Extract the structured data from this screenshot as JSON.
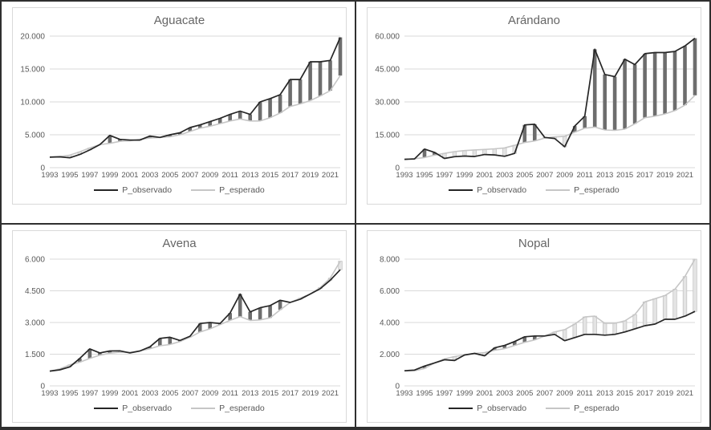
{
  "legend": {
    "observado": "P_observado",
    "esperado": "P_esperado"
  },
  "colors": {
    "frame_border": "#2f2f2f",
    "chart_box_border": "#d9d9d9",
    "gridline": "#d9d9d9",
    "axis_text": "#595959",
    "title_text": "#666666",
    "observado_line": "#262626",
    "esperado_line": "#c6c6c6",
    "bar_up": "#6d6d6d",
    "bar_down": "#e4e4e4",
    "bar_down_border": "#c2c2c2"
  },
  "years": [
    1993,
    1994,
    1995,
    1996,
    1997,
    1998,
    1999,
    2000,
    2001,
    2002,
    2003,
    2004,
    2005,
    2006,
    2007,
    2008,
    2009,
    2010,
    2011,
    2012,
    2013,
    2014,
    2015,
    2016,
    2017,
    2018,
    2019,
    2020,
    2021,
    2022
  ],
  "x_tick_labels": [
    "1993",
    "1995",
    "1997",
    "1999",
    "2001",
    "2003",
    "2005",
    "2007",
    "2009",
    "2011",
    "2013",
    "2015",
    "2017",
    "2019",
    "2021"
  ],
  "chart_data": [
    {
      "type": "line",
      "title": "Aguacate",
      "xlabel": "",
      "ylabel": "",
      "ylim": [
        0,
        20000
      ],
      "grid": true,
      "legend_position": "bottom",
      "y_ticks": [
        {
          "value": 0,
          "label": "0"
        },
        {
          "value": 5000,
          "label": "5.000"
        },
        {
          "value": 10000,
          "label": "10.000"
        },
        {
          "value": 15000,
          "label": "15.000"
        },
        {
          "value": 20000,
          "label": "20.000"
        }
      ],
      "series": [
        {
          "name": "P_observado",
          "values": [
            1600,
            1650,
            1500,
            2000,
            2700,
            3500,
            4900,
            4300,
            4200,
            4200,
            4800,
            4600,
            5000,
            5300,
            6100,
            6500,
            7000,
            7500,
            8100,
            8600,
            8100,
            10000,
            10500,
            11100,
            13400,
            13400,
            16100,
            16100,
            16300,
            19800
          ]
        },
        {
          "name": "P_esperado",
          "values": [
            1600,
            1700,
            1900,
            2400,
            3000,
            3500,
            3700,
            4000,
            4100,
            4300,
            4500,
            4600,
            4700,
            5000,
            5500,
            6000,
            6300,
            6700,
            7100,
            7400,
            7100,
            7100,
            7600,
            8300,
            9300,
            9700,
            10200,
            10900,
            11700,
            14000
          ]
        }
      ]
    },
    {
      "type": "line",
      "title": "Arándano",
      "xlabel": "",
      "ylabel": "",
      "ylim": [
        0,
        60000
      ],
      "grid": true,
      "legend_position": "bottom",
      "y_ticks": [
        {
          "value": 0,
          "label": "0"
        },
        {
          "value": 15000,
          "label": "15.000"
        },
        {
          "value": 30000,
          "label": "30.000"
        },
        {
          "value": 45000,
          "label": "45.000"
        },
        {
          "value": 60000,
          "label": "60.000"
        }
      ],
      "series": [
        {
          "name": "P_observado",
          "values": [
            3800,
            4000,
            8500,
            7000,
            4200,
            5000,
            5300,
            5100,
            6000,
            5800,
            5200,
            6500,
            19500,
            19800,
            13800,
            13300,
            9500,
            19000,
            23500,
            54000,
            42500,
            41500,
            49500,
            47000,
            52000,
            52500,
            52500,
            53000,
            55500,
            59000
          ]
        },
        {
          "name": "P_esperado",
          "values": [
            3800,
            4100,
            4600,
            5700,
            6500,
            7300,
            7800,
            8100,
            8300,
            8600,
            9000,
            10200,
            11500,
            12200,
            13500,
            14000,
            14300,
            16200,
            18000,
            18500,
            17200,
            17000,
            17600,
            20000,
            22800,
            23500,
            24500,
            26000,
            28500,
            33000
          ]
        }
      ]
    },
    {
      "type": "line",
      "title": "Avena",
      "xlabel": "",
      "ylabel": "",
      "ylim": [
        0,
        6000
      ],
      "grid": true,
      "legend_position": "bottom",
      "y_ticks": [
        {
          "value": 0,
          "label": "0"
        },
        {
          "value": 1500,
          "label": "1.500"
        },
        {
          "value": 3000,
          "label": "3.000"
        },
        {
          "value": 4500,
          "label": "4.500"
        },
        {
          "value": 6000,
          "label": "6.000"
        }
      ],
      "series": [
        {
          "name": "P_observado",
          "values": [
            700,
            760,
            900,
            1300,
            1750,
            1560,
            1650,
            1660,
            1560,
            1650,
            1850,
            2250,
            2300,
            2150,
            2350,
            2950,
            3000,
            2950,
            3450,
            4350,
            3500,
            3700,
            3800,
            4050,
            3950,
            4100,
            4350,
            4600,
            5000,
            5500
          ]
        },
        {
          "name": "P_esperado",
          "values": [
            700,
            800,
            1000,
            1120,
            1300,
            1450,
            1550,
            1600,
            1590,
            1650,
            1760,
            1900,
            1960,
            2100,
            2300,
            2550,
            2700,
            2900,
            3100,
            3280,
            3100,
            3120,
            3220,
            3600,
            3950,
            4150,
            4350,
            4650,
            5100,
            5900
          ]
        }
      ]
    },
    {
      "type": "line",
      "title": "Nopal",
      "xlabel": "",
      "ylabel": "",
      "ylim": [
        0,
        8000
      ],
      "grid": true,
      "legend_position": "bottom",
      "y_ticks": [
        {
          "value": 0,
          "label": "0"
        },
        {
          "value": 2000,
          "label": "2.000"
        },
        {
          "value": 4000,
          "label": "4.000"
        },
        {
          "value": 6000,
          "label": "6.000"
        },
        {
          "value": 8000,
          "label": "8.000"
        }
      ],
      "series": [
        {
          "name": "P_observado",
          "values": [
            950,
            1000,
            1250,
            1450,
            1650,
            1600,
            1950,
            2050,
            1900,
            2400,
            2550,
            2800,
            3100,
            3150,
            3150,
            3250,
            2850,
            3050,
            3250,
            3250,
            3200,
            3250,
            3400,
            3600,
            3800,
            3900,
            4200,
            4200,
            4400,
            4700
          ]
        },
        {
          "name": "P_esperado",
          "values": [
            950,
            950,
            1100,
            1450,
            1700,
            1850,
            1950,
            2050,
            2100,
            2250,
            2350,
            2550,
            2750,
            2900,
            3150,
            3400,
            3550,
            3900,
            4350,
            4400,
            3950,
            3950,
            4100,
            4500,
            5300,
            5500,
            5700,
            6100,
            6900,
            8000
          ]
        }
      ]
    }
  ]
}
